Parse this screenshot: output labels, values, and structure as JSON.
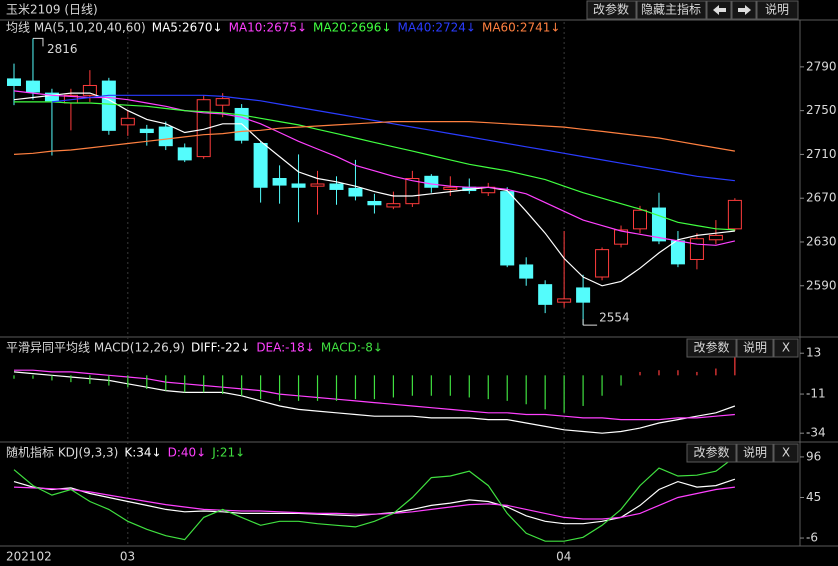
{
  "header": {
    "title": "玉米2109 (日线)",
    "buttons": [
      "改参数",
      "隐藏主指标",
      "说明"
    ]
  },
  "chart_data": [
    {
      "type": "candlestick",
      "title": "均线 MA(5,10,20,40,60)",
      "categories": [
        "202102",
        null,
        null,
        null,
        null,
        null,
        "03",
        null,
        null,
        null,
        null,
        null,
        null,
        null,
        null,
        null,
        null,
        null,
        null,
        null,
        null,
        null,
        null,
        null,
        null,
        null,
        null,
        null,
        null,
        "04",
        null,
        null,
        null,
        null,
        null,
        null,
        null,
        null,
        null
      ],
      "open": [
        2779,
        2777,
        2766,
        2757,
        2764,
        2777,
        2737,
        2733,
        2735,
        2716,
        2708,
        2755,
        2752,
        2720,
        2688,
        2683,
        2681,
        2683,
        2679,
        2667,
        2662,
        2665,
        2690,
        2678,
        2680,
        2675,
        2676,
        2609,
        2591,
        2575,
        2588,
        2598,
        2628,
        2642,
        2661,
        2631,
        2614,
        2632,
        2642
      ],
      "high": [
        2793,
        2816,
        2770,
        2770,
        2787,
        2780,
        2750,
        2737,
        2740,
        2720,
        2764,
        2766,
        2756,
        2722,
        2700,
        2710,
        2695,
        2690,
        2705,
        2674,
        2676,
        2695,
        2692,
        2690,
        2688,
        2684,
        2680,
        2616,
        2595,
        2640,
        2600,
        2625,
        2645,
        2663,
        2675,
        2640,
        2638,
        2650,
        2670
      ],
      "low": [
        2755,
        2760,
        2709,
        2732,
        2758,
        2728,
        2727,
        2718,
        2714,
        2703,
        2706,
        2744,
        2720,
        2666,
        2665,
        2648,
        2655,
        2664,
        2668,
        2656,
        2660,
        2662,
        2675,
        2672,
        2674,
        2672,
        2607,
        2590,
        2565,
        2570,
        2554,
        2595,
        2625,
        2638,
        2628,
        2607,
        2605,
        2628,
        2640
      ],
      "close": [
        2773,
        2767,
        2759,
        2764,
        2773,
        2732,
        2743,
        2730,
        2718,
        2705,
        2760,
        2761,
        2723,
        2680,
        2682,
        2680,
        2683,
        2678,
        2672,
        2664,
        2665,
        2688,
        2680,
        2680,
        2677,
        2680,
        2609,
        2597,
        2573,
        2578,
        2575,
        2623,
        2641,
        2659,
        2631,
        2610,
        2633,
        2636,
        2668
      ],
      "up_color": "#ff3c3c",
      "down_color": "#54fcfc",
      "series": [
        {
          "name": "MA5:2670↓",
          "color": "#ffffff",
          "values": [
            2760,
            2762,
            2764,
            2766,
            2766,
            2760,
            2750,
            2742,
            2738,
            2730,
            2733,
            2738,
            2738,
            2722,
            2708,
            2694,
            2688,
            2685,
            2681,
            2676,
            2672,
            2672,
            2674,
            2676,
            2678,
            2680,
            2677,
            2658,
            2638,
            2615,
            2598,
            2590,
            2594,
            2606,
            2620,
            2632,
            2636,
            2638,
            2640
          ]
        },
        {
          "name": "MA10:2675↓",
          "color": "#ff40ff",
          "values": [
            2768,
            2766,
            2764,
            2763,
            2762,
            2762,
            2760,
            2757,
            2754,
            2750,
            2748,
            2747,
            2744,
            2738,
            2730,
            2722,
            2715,
            2708,
            2700,
            2695,
            2690,
            2686,
            2683,
            2681,
            2680,
            2680,
            2678,
            2674,
            2666,
            2658,
            2650,
            2645,
            2640,
            2637,
            2634,
            2631,
            2628,
            2627,
            2631
          ]
        },
        {
          "name": "MA20:2696↓",
          "color": "#40ff40",
          "values": [
            2758,
            2758,
            2758,
            2757,
            2757,
            2756,
            2755,
            2754,
            2752,
            2750,
            2749,
            2748,
            2746,
            2743,
            2740,
            2737,
            2733,
            2729,
            2725,
            2721,
            2717,
            2713,
            2709,
            2705,
            2701,
            2698,
            2695,
            2691,
            2687,
            2681,
            2675,
            2670,
            2665,
            2660,
            2654,
            2648,
            2645,
            2642,
            2641
          ]
        },
        {
          "name": "MA40:2724↓",
          "color": "#2a3cff",
          "values": [
            null,
            null,
            2758,
            2760,
            2762,
            2764,
            2764,
            2764,
            2764,
            2764,
            2764,
            2763,
            2761,
            2759,
            2756,
            2753,
            2750,
            2747,
            2744,
            2741,
            2738,
            2735,
            2732,
            2729,
            2726,
            2723,
            2720,
            2717,
            2714,
            2711,
            2708,
            2705,
            2702,
            2699,
            2696,
            2693,
            2690,
            2688,
            2686
          ]
        },
        {
          "name": "MA60:2741↓",
          "color": "#ff8040",
          "values": [
            2710,
            2711,
            2713,
            2714,
            2716,
            2718,
            2720,
            2722,
            2724,
            2726,
            2728,
            2729,
            2731,
            2732,
            2734,
            2735,
            2736,
            2737,
            2738,
            2739,
            2740,
            2740,
            2740,
            2740,
            2740,
            2739,
            2738,
            2737,
            2736,
            2735,
            2733,
            2731,
            2729,
            2727,
            2725,
            2722,
            2719,
            2716,
            2713
          ]
        }
      ],
      "ylim": [
        2545,
        2831
      ],
      "yticks": [
        2590,
        2630,
        2670,
        2710,
        2750,
        2790
      ]
    },
    {
      "type": "macd",
      "title": "平滑异同平均线 MACD(12,26,9)",
      "buttons": [
        "改参数",
        "说明",
        "X"
      ],
      "up_color": "#ff3c3c",
      "down_color": "#40e040",
      "series": [
        {
          "name": "DIFF:-22↓",
          "color": "#ffffff",
          "values": [
            2,
            1,
            0,
            -1,
            -2,
            -3,
            -5,
            -7,
            -9,
            -10,
            -10,
            -10,
            -12,
            -15,
            -18,
            -20,
            -21,
            -22,
            -23,
            -24,
            -24,
            -24,
            -25,
            -25,
            -25,
            -26,
            -26,
            -28,
            -30,
            -32,
            -33,
            -34,
            -33,
            -31,
            -28,
            -26,
            -24,
            -22,
            -18
          ]
        },
        {
          "name": "DEA:-18↓",
          "color": "#ff40ff",
          "values": [
            3,
            3,
            2,
            2,
            1,
            0,
            -1,
            -2,
            -4,
            -5,
            -6,
            -7,
            -8,
            -9,
            -11,
            -12,
            -13,
            -14,
            -15,
            -16,
            -17,
            -18,
            -19,
            -20,
            -21,
            -22,
            -22,
            -23,
            -23,
            -24,
            -25,
            -25,
            -26,
            -26,
            -26,
            -25,
            -25,
            -24,
            -23
          ]
        },
        {
          "name": "MACD:-8↓",
          "color": "#40e040",
          "style": "bar",
          "values": [
            -2,
            -2,
            -3,
            -4,
            -5,
            -6,
            -7,
            -8,
            -9,
            -10,
            -10,
            -11,
            -12,
            -14,
            -15,
            -15,
            -15,
            -15,
            -14,
            -14,
            -13,
            -12,
            -12,
            -12,
            -13,
            -14,
            -15,
            -17,
            -20,
            -22,
            -18,
            -12,
            -6,
            2,
            3,
            3,
            2,
            4,
            11
          ]
        }
      ],
      "ylim": [
        -38,
        19
      ],
      "yticks": [
        13,
        -11,
        -34
      ]
    },
    {
      "type": "line",
      "title": "随机指标 KDJ(9,3,3)",
      "buttons": [
        "改参数",
        "说明",
        "X"
      ],
      "series": [
        {
          "name": "K:34↓",
          "color": "#ffffff",
          "values": [
            65,
            58,
            55,
            57,
            50,
            45,
            40,
            35,
            30,
            27,
            28,
            27,
            25,
            25,
            25,
            25,
            24,
            23,
            22,
            24,
            26,
            30,
            35,
            38,
            42,
            40,
            33,
            22,
            15,
            12,
            12,
            15,
            20,
            35,
            55,
            65,
            58,
            60,
            68
          ]
        },
        {
          "name": "D:40↓",
          "color": "#ff40ff",
          "values": [
            58,
            57,
            56,
            55,
            52,
            48,
            44,
            40,
            36,
            33,
            30,
            29,
            28,
            28,
            27,
            26,
            25,
            25,
            24,
            24,
            25,
            27,
            30,
            33,
            36,
            37,
            35,
            30,
            25,
            20,
            18,
            18,
            20,
            25,
            35,
            45,
            50,
            55,
            58
          ]
        },
        {
          "name": "J:21↓",
          "color": "#40e040",
          "values": [
            80,
            60,
            48,
            55,
            40,
            30,
            15,
            5,
            -3,
            -8,
            20,
            30,
            20,
            10,
            15,
            15,
            12,
            10,
            8,
            15,
            25,
            45,
            70,
            72,
            78,
            60,
            25,
            0,
            -10,
            -10,
            -5,
            10,
            30,
            60,
            82,
            72,
            73,
            78,
            96
          ]
        }
      ],
      "ylim": [
        -16,
        111
      ],
      "yticks": [
        96,
        45,
        -6
      ]
    }
  ]
}
